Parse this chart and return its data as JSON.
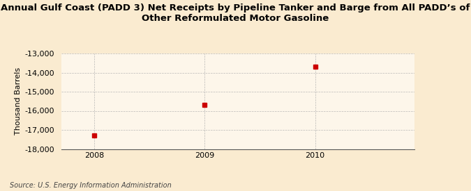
{
  "title_line1": "Annual Gulf Coast (PADD 3) Net Receipts by Pipeline Tanker and Barge from All PADD’s of",
  "title_line2": "Other Reformulated Motor Gasoline",
  "ylabel": "Thousand Barrels",
  "x_values": [
    2008,
    2009,
    2010
  ],
  "y_values": [
    -17300,
    -15700,
    -13700
  ],
  "marker_color": "#cc0000",
  "marker_size": 4,
  "ylim": [
    -18000,
    -13000
  ],
  "xlim": [
    2007.7,
    2010.9
  ],
  "yticks": [
    -18000,
    -17000,
    -16000,
    -15000,
    -14000,
    -13000
  ],
  "xticks": [
    2008,
    2009,
    2010
  ],
  "background_color": "#faebd0",
  "plot_bg_color": "#fdf6ea",
  "grid_color": "#aaaaaa",
  "source_text": "Source: U.S. Energy Information Administration",
  "title_fontsize": 9.5,
  "ylabel_fontsize": 8,
  "tick_fontsize": 8,
  "source_fontsize": 7
}
